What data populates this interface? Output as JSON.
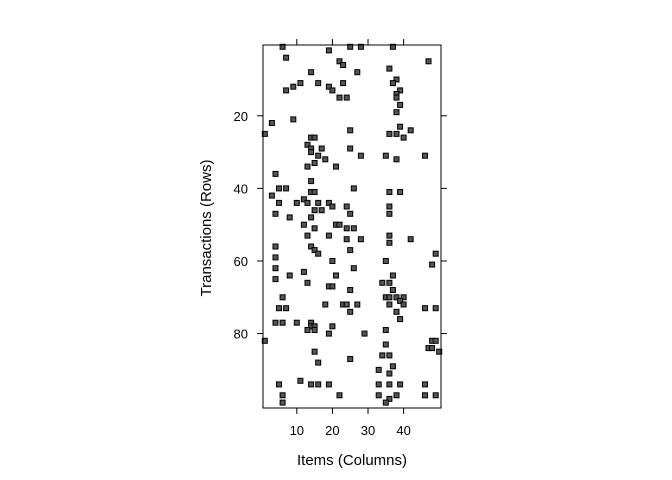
{
  "chart_data": {
    "type": "scatter",
    "title": "",
    "xlabel": "Items (Columns)",
    "ylabel": "Transactions (Rows)",
    "xlim": [
      0.5,
      50.5
    ],
    "ylim": [
      100.5,
      0.5
    ],
    "x_ticks": [
      10,
      20,
      30,
      40
    ],
    "y_ticks": [
      20,
      40,
      60,
      80
    ],
    "grid": false,
    "legend": "none",
    "marker_color": "#555555",
    "marker_edge": "#000000",
    "points": [
      [
        6,
        1
      ],
      [
        25,
        1
      ],
      [
        28,
        1
      ],
      [
        37,
        1
      ],
      [
        19,
        2
      ],
      [
        7,
        4
      ],
      [
        22,
        5
      ],
      [
        47,
        5
      ],
      [
        23,
        6
      ],
      [
        36,
        7
      ],
      [
        14,
        8
      ],
      [
        27,
        8
      ],
      [
        38,
        10
      ],
      [
        11,
        11
      ],
      [
        16,
        11
      ],
      [
        23,
        11
      ],
      [
        37,
        11
      ],
      [
        9,
        12
      ],
      [
        19,
        12
      ],
      [
        7,
        13
      ],
      [
        20,
        13
      ],
      [
        39,
        13
      ],
      [
        38,
        14
      ],
      [
        22,
        15
      ],
      [
        24,
        15
      ],
      [
        38,
        15
      ],
      [
        39,
        17
      ],
      [
        38,
        19
      ],
      [
        9,
        21
      ],
      [
        3,
        22
      ],
      [
        39,
        23
      ],
      [
        25,
        24
      ],
      [
        42,
        24
      ],
      [
        1,
        25
      ],
      [
        36,
        25
      ],
      [
        38,
        25
      ],
      [
        14,
        26
      ],
      [
        15,
        26
      ],
      [
        40,
        26
      ],
      [
        13,
        28
      ],
      [
        14,
        29
      ],
      [
        17,
        29
      ],
      [
        25,
        29
      ],
      [
        14,
        30
      ],
      [
        16,
        31
      ],
      [
        28,
        31
      ],
      [
        35,
        31
      ],
      [
        46,
        31
      ],
      [
        18,
        32
      ],
      [
        38,
        32
      ],
      [
        15,
        33
      ],
      [
        13,
        34
      ],
      [
        21,
        34
      ],
      [
        4,
        36
      ],
      [
        14,
        38
      ],
      [
        5,
        40
      ],
      [
        7,
        40
      ],
      [
        26,
        40
      ],
      [
        14,
        41
      ],
      [
        15,
        41
      ],
      [
        36,
        41
      ],
      [
        39,
        41
      ],
      [
        3,
        42
      ],
      [
        12,
        43
      ],
      [
        5,
        44
      ],
      [
        10,
        44
      ],
      [
        13,
        44
      ],
      [
        16,
        44
      ],
      [
        19,
        44
      ],
      [
        20,
        45
      ],
      [
        24,
        45
      ],
      [
        36,
        45
      ],
      [
        15,
        46
      ],
      [
        17,
        46
      ],
      [
        4,
        47
      ],
      [
        25,
        47
      ],
      [
        36,
        47
      ],
      [
        8,
        48
      ],
      [
        14,
        48
      ],
      [
        12,
        50
      ],
      [
        21,
        50
      ],
      [
        22,
        50
      ],
      [
        15,
        51
      ],
      [
        24,
        51
      ],
      [
        26,
        51
      ],
      [
        13,
        53
      ],
      [
        19,
        53
      ],
      [
        36,
        53
      ],
      [
        24,
        54
      ],
      [
        28,
        54
      ],
      [
        42,
        54
      ],
      [
        36,
        55
      ],
      [
        4,
        56
      ],
      [
        14,
        56
      ],
      [
        15,
        57
      ],
      [
        25,
        57
      ],
      [
        16,
        58
      ],
      [
        49,
        58
      ],
      [
        4,
        59
      ],
      [
        20,
        60
      ],
      [
        35,
        60
      ],
      [
        48,
        61
      ],
      [
        4,
        62
      ],
      [
        26,
        62
      ],
      [
        12,
        63
      ],
      [
        8,
        64
      ],
      [
        21,
        64
      ],
      [
        37,
        64
      ],
      [
        4,
        65
      ],
      [
        13,
        66
      ],
      [
        34,
        66
      ],
      [
        36,
        66
      ],
      [
        19,
        67
      ],
      [
        20,
        67
      ],
      [
        25,
        68
      ],
      [
        37,
        68
      ],
      [
        6,
        70
      ],
      [
        35,
        70
      ],
      [
        36,
        70
      ],
      [
        38,
        70
      ],
      [
        40,
        70
      ],
      [
        39,
        71
      ],
      [
        18,
        72
      ],
      [
        23,
        72
      ],
      [
        24,
        72
      ],
      [
        27,
        72
      ],
      [
        36,
        72
      ],
      [
        40,
        72
      ],
      [
        5,
        73
      ],
      [
        7,
        73
      ],
      [
        46,
        73
      ],
      [
        49,
        73
      ],
      [
        25,
        74
      ],
      [
        38,
        74
      ],
      [
        39,
        76
      ],
      [
        4,
        77
      ],
      [
        6,
        77
      ],
      [
        10,
        77
      ],
      [
        14,
        77
      ],
      [
        14,
        78
      ],
      [
        15,
        78
      ],
      [
        20,
        78
      ],
      [
        13,
        79
      ],
      [
        15,
        79
      ],
      [
        35,
        79
      ],
      [
        19,
        80
      ],
      [
        29,
        80
      ],
      [
        1,
        82
      ],
      [
        48,
        82
      ],
      [
        49,
        82
      ],
      [
        35,
        83
      ],
      [
        47,
        84
      ],
      [
        48,
        84
      ],
      [
        15,
        85
      ],
      [
        50,
        85
      ],
      [
        34,
        86
      ],
      [
        36,
        86
      ],
      [
        25,
        87
      ],
      [
        16,
        88
      ],
      [
        37,
        89
      ],
      [
        33,
        90
      ],
      [
        36,
        91
      ],
      [
        11,
        93
      ],
      [
        5,
        94
      ],
      [
        14,
        94
      ],
      [
        16,
        94
      ],
      [
        19,
        94
      ],
      [
        33,
        94
      ],
      [
        36,
        94
      ],
      [
        39,
        94
      ],
      [
        46,
        94
      ],
      [
        6,
        97
      ],
      [
        22,
        97
      ],
      [
        33,
        97
      ],
      [
        38,
        97
      ],
      [
        46,
        97
      ],
      [
        49,
        97
      ],
      [
        36,
        98
      ],
      [
        6,
        99
      ],
      [
        35,
        99
      ]
    ]
  }
}
